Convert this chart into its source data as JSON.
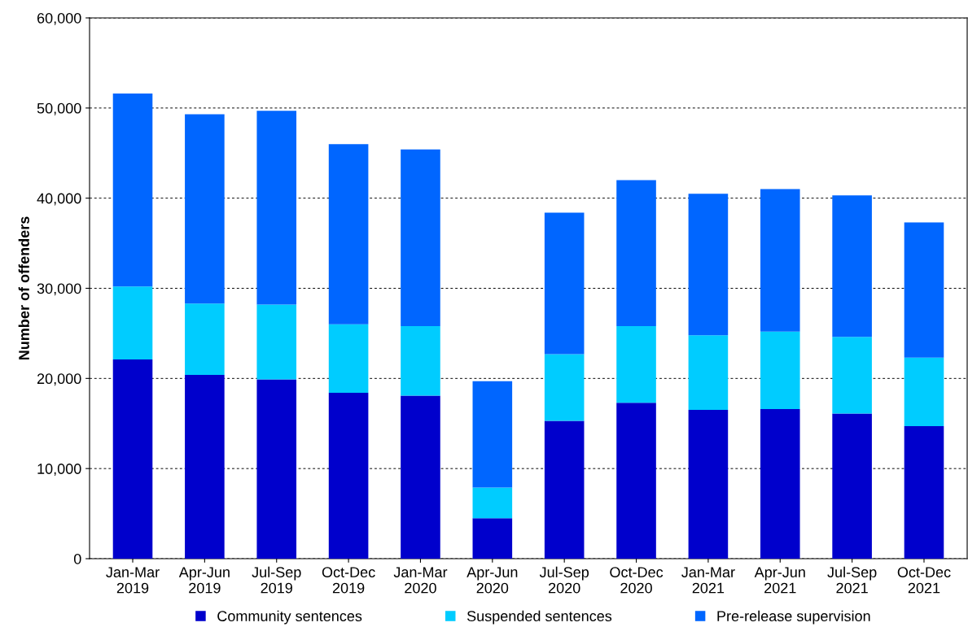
{
  "chart_data": {
    "type": "bar",
    "stacked": true,
    "ylabel": "Number of offenders",
    "categories": [
      "Jan-Mar\n2019",
      "Apr-Jun\n2019",
      "Jul-Sep\n2019",
      "Oct-Dec\n2019",
      "Jan-Mar\n2020",
      "Apr-Jun\n2020",
      "Jul-Sep\n2020",
      "Oct-Dec\n2020",
      "Jan-Mar\n2021",
      "Apr-Jun\n2021",
      "Jul-Sep\n2021",
      "Oct-Dec\n2021"
    ],
    "series": [
      {
        "name": "Community sentences",
        "color": "#0000cc",
        "values": [
          22100,
          20400,
          19900,
          18400,
          18100,
          4500,
          15300,
          17300,
          16500,
          16600,
          16100,
          14700
        ]
      },
      {
        "name": "Suspended sentences",
        "color": "#00ccff",
        "values": [
          8100,
          7900,
          8300,
          7600,
          7700,
          3400,
          7400,
          8500,
          8300,
          8600,
          8500,
          7600
        ]
      },
      {
        "name": "Pre-release supervision",
        "color": "#0066ff",
        "values": [
          21400,
          21000,
          21500,
          20000,
          19600,
          11800,
          15700,
          16200,
          15700,
          15800,
          15700,
          15000
        ]
      }
    ],
    "ylim": [
      0,
      60000
    ],
    "yticks": [
      0,
      {
        "value": 10000,
        "label": "10,000"
      },
      {
        "value": 20000,
        "label": "20,000"
      },
      {
        "value": 30000,
        "label": "30,000"
      },
      {
        "value": 40000,
        "label": "40,000"
      },
      {
        "value": 50000,
        "label": "50,000"
      },
      {
        "value": 60000,
        "label": "60,000"
      }
    ],
    "grid": "y",
    "legend": "bottom"
  }
}
